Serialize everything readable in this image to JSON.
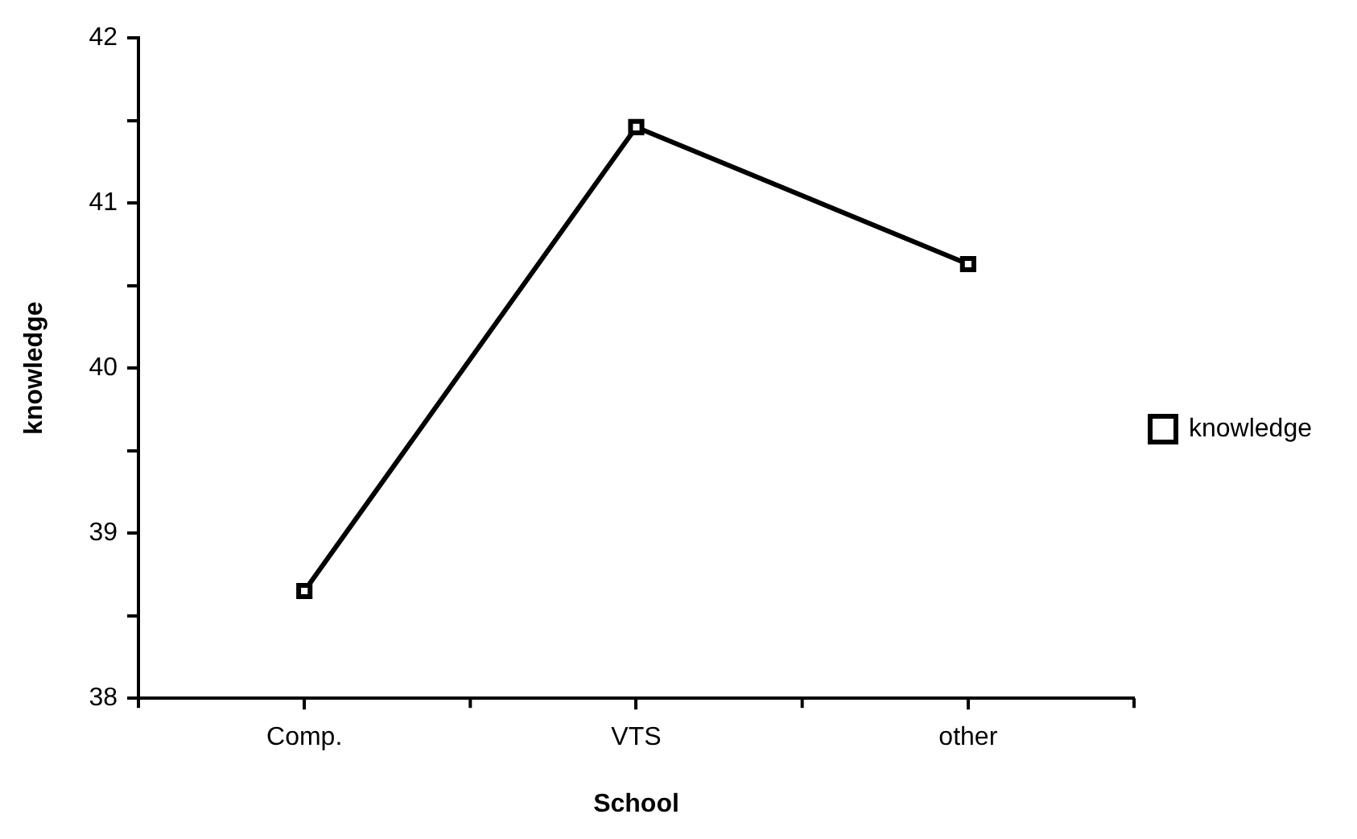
{
  "chart_data": {
    "type": "line",
    "xlabel": "School",
    "ylabel": "knowledge",
    "categories": [
      "Comp.",
      "VTS",
      "other"
    ],
    "series": [
      {
        "name": "knowledge",
        "color": "#000000",
        "values": [
          38.65,
          41.46,
          40.63
        ]
      }
    ],
    "ylim": [
      38,
      42
    ],
    "yticks": [
      38,
      {
        "value": 38.5,
        "label": null
      },
      39,
      {
        "value": 39.5,
        "label": null
      },
      40,
      {
        "value": 40.5,
        "label": null
      },
      41,
      {
        "value": 41.5,
        "label": null
      },
      42
    ],
    "grid": false,
    "legend": "right",
    "marker": "square",
    "line_style": "solid"
  }
}
